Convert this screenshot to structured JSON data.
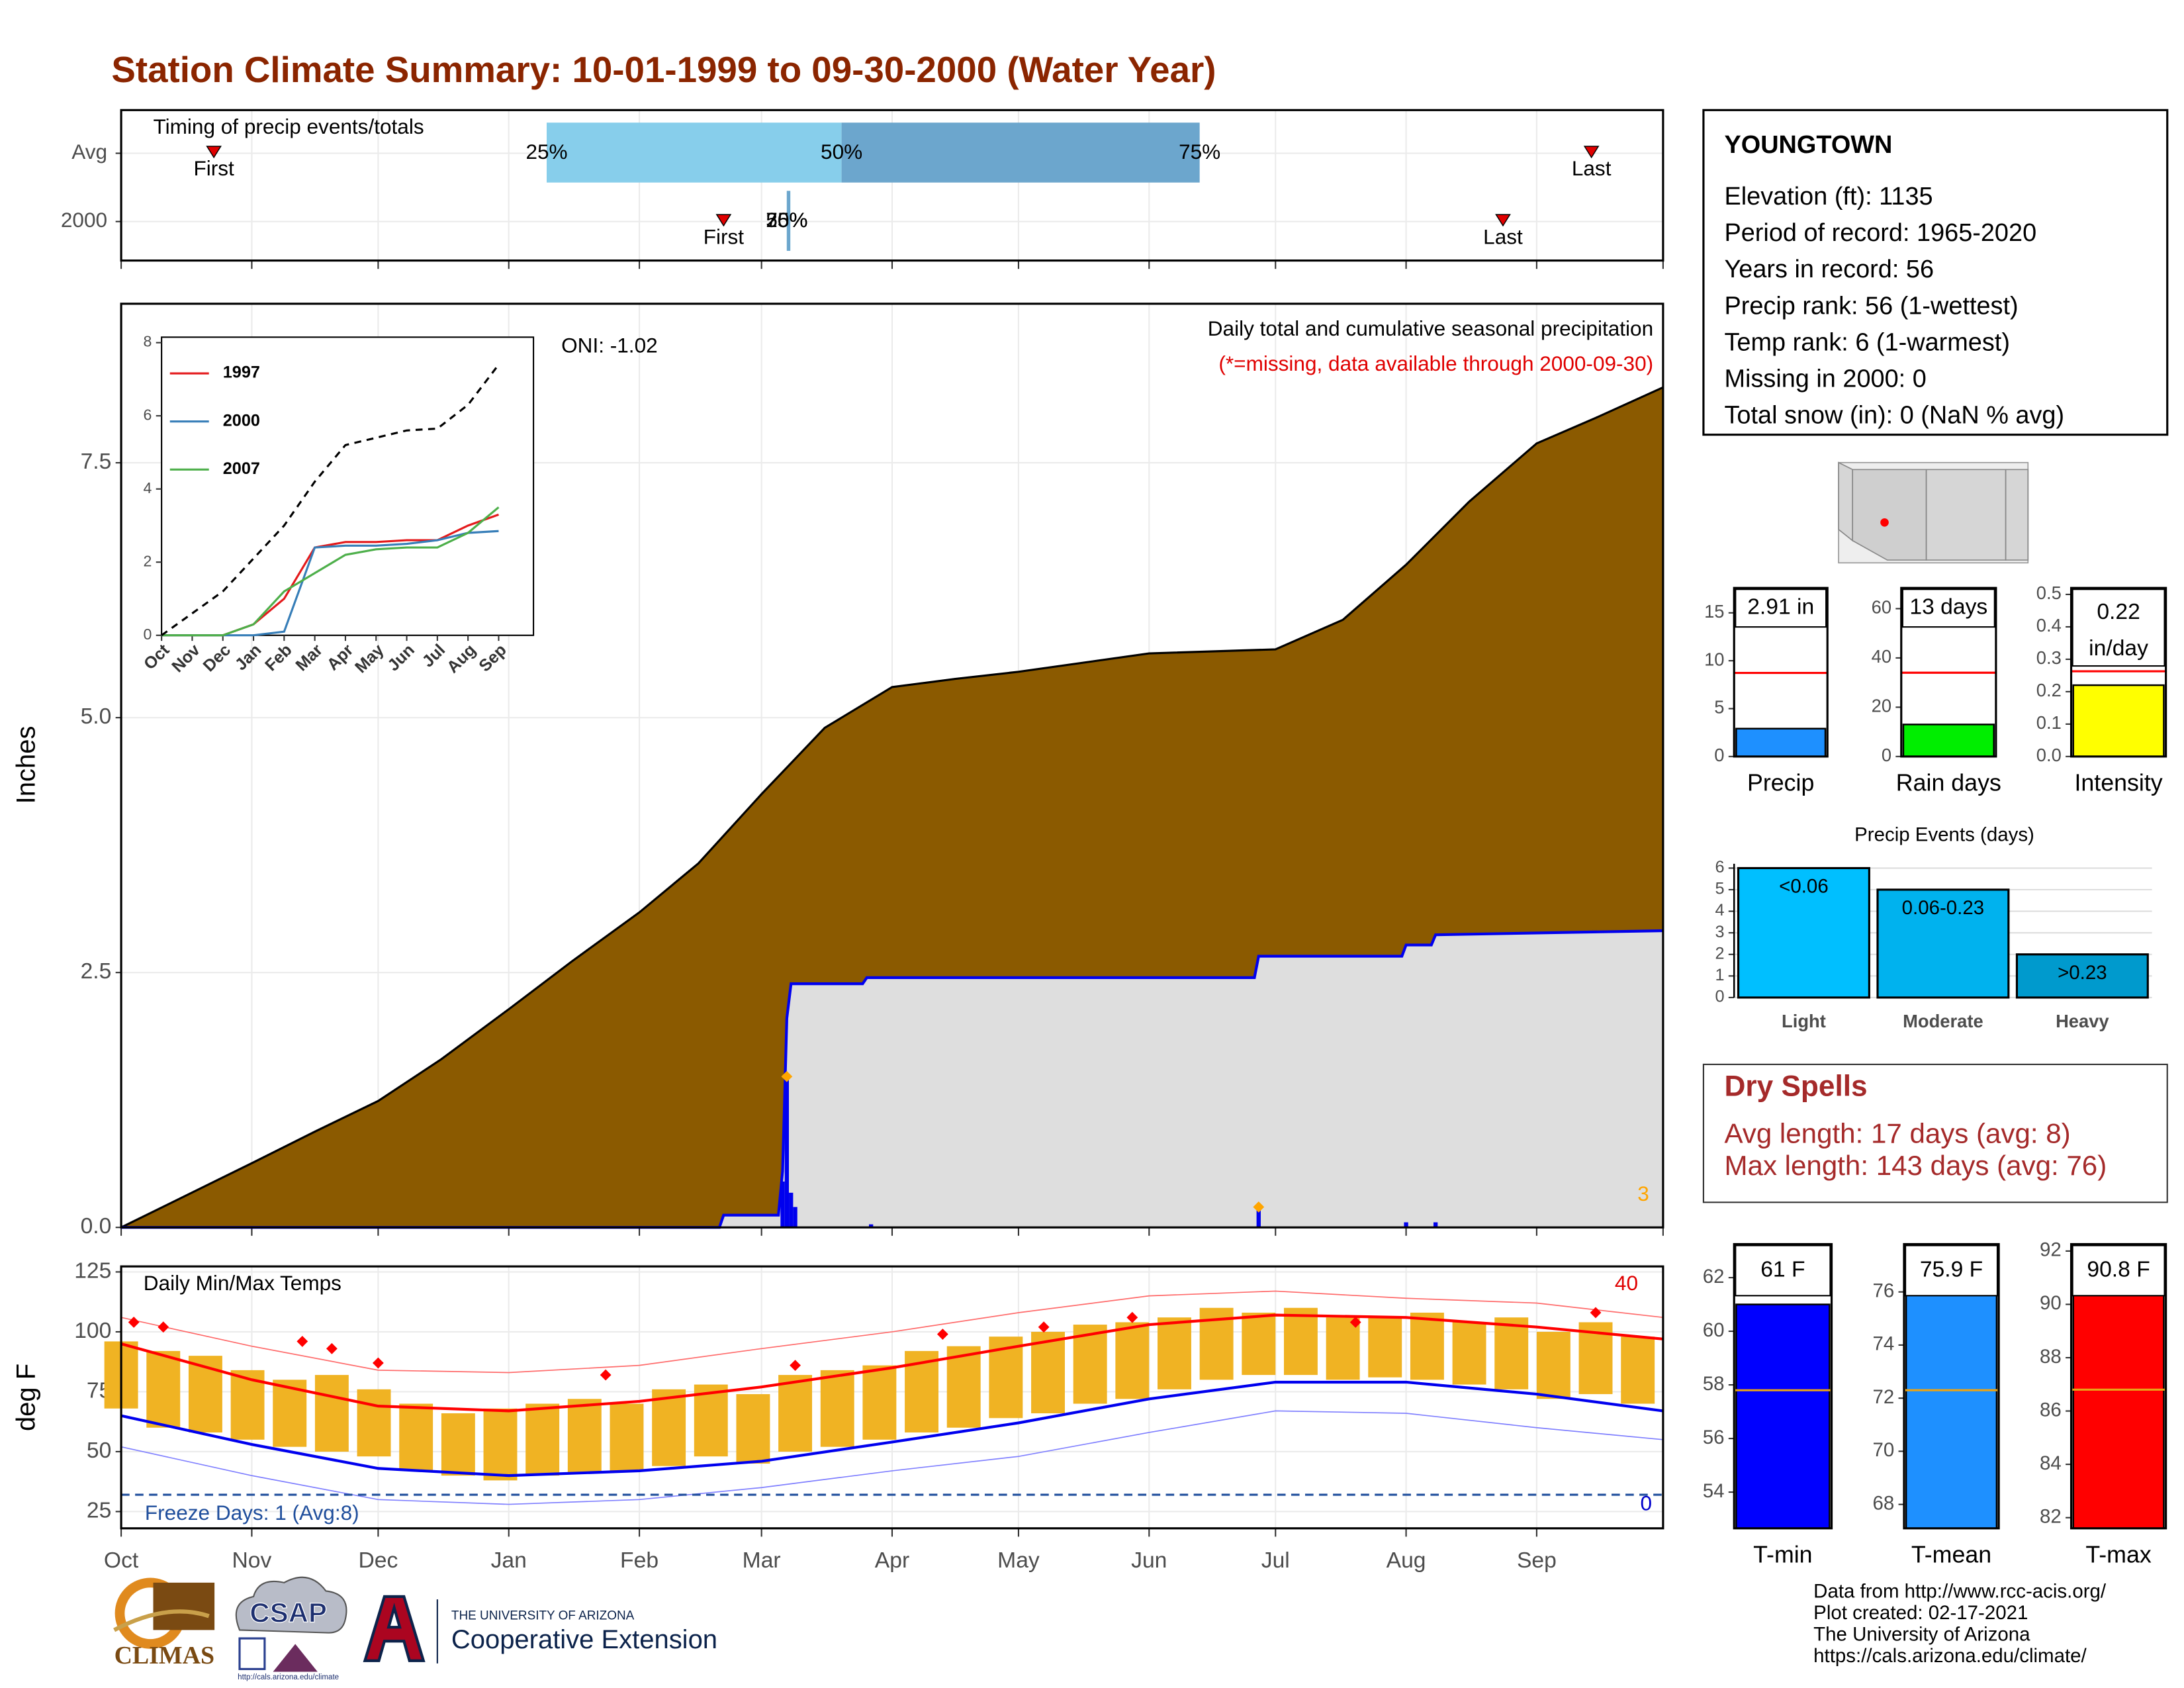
{
  "title": "Station Climate Summary: 10-01-1999 to 09-30-2000 (Water Year)",
  "chart_data": [
    {
      "type": "timing",
      "title": "Timing of precip events/totals",
      "categories": [
        "Avg",
        "2000"
      ],
      "first": [
        22,
        143
      ],
      "p25": [
        101,
        158
      ],
      "p50": [
        171,
        158
      ],
      "p75": [
        256,
        158
      ],
      "last": [
        349,
        328
      ],
      "marker_labels": {
        "first": "First",
        "last": "Last",
        "p25": "25%",
        "p50": "50%",
        "p75": "75%"
      },
      "colors": {
        "low": "#87CEEB",
        "high": "#6CA6CD",
        "marker": "#E00000"
      },
      "xlim": [
        0,
        366
      ],
      "xticks": [
        0,
        31,
        61,
        92,
        123,
        152,
        183,
        213,
        244,
        274,
        305,
        336,
        366
      ]
    },
    {
      "type": "area",
      "title": "Daily total and cumulative seasonal precipitation",
      "subtitle": "(*=missing, data available through 2000-09-30)",
      "annotation": "ONI: -1.02",
      "corner_label": "3",
      "ylabel": "Inches",
      "xlim": [
        0,
        366
      ],
      "xticks": [
        0,
        31,
        61,
        92,
        123,
        152,
        183,
        213,
        244,
        274,
        305,
        336,
        366
      ],
      "ylim": [
        0,
        9.06
      ],
      "yticks": [
        {
          "value": 0,
          "label": "0.0"
        },
        2.5,
        {
          "value": 5,
          "label": "5.0"
        },
        7.5
      ],
      "grid": true,
      "average": {
        "color": "#8B5A00",
        "x": [
          0,
          31,
          46,
          61,
          76,
          92,
          107,
          123,
          137,
          152,
          167,
          183,
          198,
          213,
          244,
          274,
          290,
          305,
          320,
          336,
          350,
          366
        ],
        "values": [
          0,
          0.63,
          0.94,
          1.24,
          1.65,
          2.14,
          2.61,
          3.09,
          3.57,
          4.25,
          4.9,
          5.3,
          5.38,
          5.45,
          5.63,
          5.67,
          5.96,
          6.5,
          7.12,
          7.69,
          7.94,
          8.24
        ]
      },
      "current": {
        "color": "#0000EE",
        "fill": "#DEDEDE",
        "x": [
          0,
          142,
          143,
          156,
          157,
          158,
          159,
          176,
          177,
          269,
          270,
          304,
          305,
          311,
          312,
          366
        ],
        "values": [
          0,
          0,
          0.12,
          0.12,
          0.55,
          2.05,
          2.39,
          2.39,
          2.45,
          2.45,
          2.66,
          2.66,
          2.77,
          2.77,
          2.87,
          2.91
        ]
      },
      "daily": {
        "color": "#0000EE",
        "x": [
          157,
          158,
          159,
          160,
          178,
          270,
          305,
          312
        ],
        "values": [
          0.45,
          1.5,
          0.34,
          0.2,
          0.03,
          0.2,
          0.05,
          0.05
        ]
      },
      "records": {
        "color": "#FFA500",
        "x": [
          158,
          270
        ],
        "values": [
          1.48,
          0.2
        ]
      }
    },
    {
      "type": "line",
      "categories": [
        "Oct",
        "Nov",
        "Dec",
        "Jan",
        "Feb",
        "Mar",
        "Apr",
        "May",
        "Jun",
        "Jul",
        "Aug",
        "Sep"
      ],
      "ylim": [
        0,
        8.15
      ],
      "yticks": [
        0,
        2,
        4,
        6,
        8
      ],
      "series": [
        {
          "name": "1997",
          "color": "#E41A1C",
          "values": [
            0,
            0,
            0,
            0.3,
            1.0,
            2.4,
            2.55,
            2.55,
            2.6,
            2.6,
            3.0,
            3.3
          ]
        },
        {
          "name": "2000",
          "color": "#377EB8",
          "values": [
            0,
            0,
            0,
            0,
            0.1,
            2.4,
            2.45,
            2.45,
            2.5,
            2.6,
            2.8,
            2.85
          ]
        },
        {
          "name": "2007",
          "color": "#4DAF4A",
          "values": [
            0,
            0,
            0,
            0.3,
            1.2,
            1.7,
            2.2,
            2.35,
            2.4,
            2.4,
            2.8,
            3.5
          ]
        },
        {
          "color": "#000000",
          "dash": true,
          "values": [
            0,
            0.6,
            1.2,
            2.1,
            3.0,
            4.2,
            5.2,
            5.4,
            5.6,
            5.65,
            6.3,
            7.4
          ]
        }
      ]
    },
    {
      "type": "temp",
      "title": "Daily Min/Max Temps",
      "ylabel": "deg F",
      "xlim": [
        0,
        366
      ],
      "xticks": [
        {
          "value": 0,
          "label": "Oct"
        },
        {
          "value": 31,
          "label": "Nov"
        },
        {
          "value": 61,
          "label": "Dec"
        },
        {
          "value": 92,
          "label": "Jan"
        },
        {
          "value": 123,
          "label": "Feb"
        },
        {
          "value": 152,
          "label": "Mar"
        },
        {
          "value": 183,
          "label": "Apr"
        },
        {
          "value": 213,
          "label": "May"
        },
        {
          "value": 244,
          "label": "Jun"
        },
        {
          "value": 274,
          "label": "Jul"
        },
        {
          "value": 305,
          "label": "Aug"
        },
        {
          "value": 336,
          "label": "Sep"
        }
      ],
      "ylim": [
        18,
        127.3
      ],
      "yticks": [
        25,
        50,
        75,
        100,
        125
      ],
      "grid": true,
      "bar_color": "#F0B323",
      "x": [
        0,
        10,
        20,
        30,
        40,
        50,
        60,
        70,
        80,
        90,
        100,
        110,
        120,
        130,
        140,
        150,
        160,
        170,
        180,
        190,
        200,
        210,
        220,
        230,
        240,
        250,
        260,
        270,
        280,
        290,
        300,
        310,
        320,
        330,
        340,
        350,
        360
      ],
      "tmax": [
        96,
        92,
        90,
        84,
        80,
        82,
        76,
        70,
        66,
        68,
        70,
        72,
        70,
        76,
        78,
        74,
        82,
        84,
        86,
        92,
        94,
        98,
        100,
        103,
        104,
        106,
        110,
        108,
        110,
        106,
        106,
        108,
        104,
        106,
        100,
        104,
        98
      ],
      "tmin": [
        68,
        60,
        58,
        55,
        52,
        50,
        48,
        42,
        40,
        38,
        40,
        41,
        42,
        44,
        48,
        45,
        50,
        52,
        55,
        58,
        60,
        64,
        66,
        70,
        72,
        76,
        80,
        82,
        82,
        80,
        81,
        80,
        78,
        76,
        72,
        74,
        70
      ],
      "normal_x": [
        0,
        31,
        61,
        92,
        123,
        152,
        183,
        213,
        244,
        274,
        305,
        336,
        366
      ],
      "normal_max": [
        95,
        80,
        69,
        67,
        71,
        77,
        85,
        94,
        103,
        107,
        106,
        102,
        97
      ],
      "normal_min": [
        65,
        53,
        43,
        40,
        42,
        46,
        54,
        62,
        72,
        79,
        79,
        74,
        67
      ],
      "record_max": [
        106,
        94,
        84,
        83,
        86,
        93,
        100,
        108,
        115,
        117,
        114,
        112,
        106
      ],
      "record_min": [
        52,
        40,
        30,
        28,
        30,
        35,
        42,
        48,
        58,
        67,
        66,
        60,
        55
      ],
      "highs_x": [
        3,
        10,
        43,
        50,
        61,
        115,
        160,
        195,
        219,
        240,
        293,
        350
      ],
      "highs": [
        104,
        102,
        96,
        93,
        87,
        82,
        86,
        99,
        102,
        106,
        104,
        108
      ],
      "freeze": 32,
      "freeze_label": "Freeze Days: 1 (Avg:8)",
      "hot_label": "40",
      "cold_label": "0"
    },
    {
      "type": "gauge",
      "categories": [
        "Precip"
      ],
      "values": [
        2.91
      ],
      "value_labels": [
        "2.91 in"
      ],
      "avg": 8.73,
      "avg_color": "#FF0000",
      "color": "#1E90FF",
      "ylim": [
        0,
        17.6
      ],
      "yticks": [
        0,
        5,
        10,
        15
      ]
    },
    {
      "type": "gauge",
      "categories": [
        "Rain days"
      ],
      "values": [
        13
      ],
      "value_labels": [
        "13 days"
      ],
      "avg": 34,
      "avg_color": "#FF0000",
      "color": "#00EE00",
      "ylim": [
        0,
        68.4
      ],
      "yticks": [
        0,
        20,
        40,
        60
      ]
    },
    {
      "type": "gauge",
      "categories": [
        "Intensity"
      ],
      "values": [
        0.22
      ],
      "value_labels": [
        "0.22 in/day"
      ],
      "wrap": true,
      "avg": 0.263,
      "avg_color": "#FF0000",
      "color": "#FFFF00",
      "ylim": [
        0,
        0.52
      ],
      "yticks": [
        {
          "value": 0,
          "label": "0.0"
        },
        0.1,
        0.2,
        0.3,
        0.4,
        0.5
      ]
    },
    {
      "type": "bar",
      "title": "Precip Events (days)",
      "categories": [
        "Light",
        "Moderate",
        "Heavy"
      ],
      "values": [
        6,
        5,
        2
      ],
      "bin_labels": [
        "<0.06",
        "0.06-0.23",
        ">0.23"
      ],
      "colors": [
        "#00BFFF",
        "#00B2EE",
        "#009ACD"
      ],
      "ylim": [
        0,
        6.2
      ],
      "yticks": [
        0,
        1,
        2,
        3,
        4,
        5,
        6
      ],
      "grid": true
    },
    {
      "type": "gauge",
      "categories": [
        "T-min"
      ],
      "values": [
        61
      ],
      "value_labels": [
        "61 F"
      ],
      "avg": 57.8,
      "avg_color": "#E8A317",
      "color": "#0000FF",
      "ylim": [
        52.65,
        63.25
      ],
      "yticks": [
        54,
        56,
        58,
        60,
        62
      ]
    },
    {
      "type": "gauge",
      "categories": [
        "T-mean"
      ],
      "values": [
        75.9
      ],
      "value_labels": [
        "75.9 F"
      ],
      "avg": 72.3,
      "avg_color": "#E8A317",
      "color": "#1E90FF",
      "ylim": [
        67.1,
        77.8
      ],
      "yticks": [
        68,
        70,
        72,
        74,
        76
      ]
    },
    {
      "type": "gauge",
      "categories": [
        "T-max"
      ],
      "values": [
        90.8
      ],
      "value_labels": [
        "90.8 F"
      ],
      "avg": 86.8,
      "avg_color": "#E8A317",
      "color": "#FF0000",
      "ylim": [
        81.6,
        92.26
      ],
      "yticks": [
        82,
        84,
        86,
        88,
        90,
        92
      ]
    }
  ],
  "station": {
    "name": "YOUNGTOWN",
    "lines": [
      "Elevation (ft): 1135",
      "Period of record: 1965-2020",
      "Years in record: 56",
      "Precip rank: 56 (1-wettest)",
      "Temp rank: 6 (1-warmest)",
      "Missing in 2000: 0",
      "Total snow (in): 0 (NaN % avg)"
    ]
  },
  "dry_spells": {
    "title": "Dry Spells",
    "lines": [
      "Avg length: 17 days (avg: 8)",
      "Max length: 143 days (avg: 76)"
    ]
  },
  "footer": {
    "climas": "CLIMAS",
    "csap": "CSAP",
    "csap_url": "http://cals.arizona.edu/climate",
    "ua_small": "THE UNIVERSITY OF ARIZONA",
    "ua_large": "Cooperative Extension",
    "credits": [
      "Data from http://www.rcc-acis.org/",
      "Plot created: 02-17-2021",
      "The University of Arizona",
      "https://cals.arizona.edu/climate/"
    ]
  }
}
